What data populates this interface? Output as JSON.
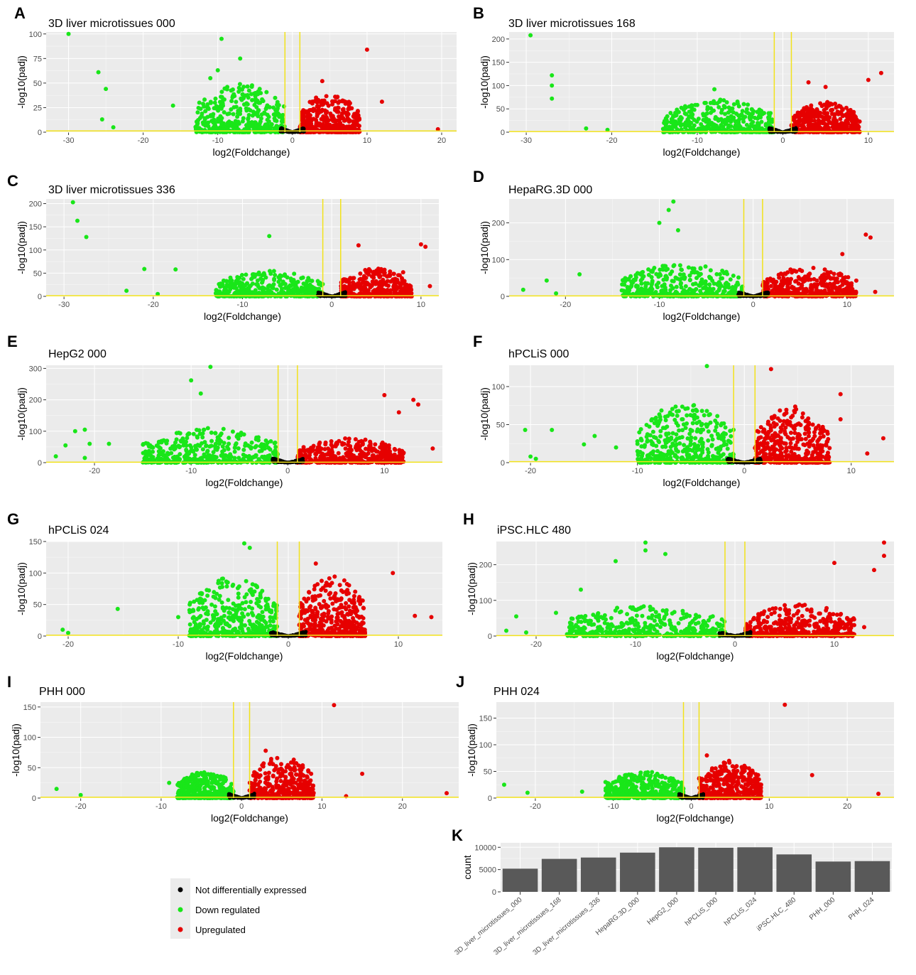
{
  "colors": {
    "panel_bg": "#ebebeb",
    "grid": "#ffffff",
    "threshold_line": "#f2e21a",
    "not_de": "#000000",
    "down": "#19e619",
    "up": "#e60000",
    "bar": "#595959"
  },
  "legend": {
    "items": [
      {
        "label": "Not differentially expressed",
        "color": "#000000"
      },
      {
        "label": "Down regulated",
        "color": "#19e619"
      },
      {
        "label": "Upregulated",
        "color": "#e60000"
      }
    ]
  },
  "chart_data": [
    {
      "panel": "A",
      "type": "scatter",
      "title": "3D liver microtissues 000",
      "xlabel": "log2(Foldchange)",
      "ylabel": "-log10(padj)",
      "xlim": [
        -33,
        22
      ],
      "ylim": [
        0,
        102
      ],
      "xticks": [
        -30,
        -20,
        -10,
        0,
        10,
        20
      ],
      "yticks": [
        0,
        25,
        50,
        75,
        100
      ],
      "threshold_x": [
        -1,
        1
      ],
      "threshold_y": 1.3,
      "down_cloud": {
        "x": [
          -13,
          -1
        ],
        "ymax": 50
      },
      "up_cloud": {
        "x": [
          1,
          9
        ],
        "ymax": 40
      },
      "outliers": [
        [
          -30,
          100
        ],
        [
          -26,
          61
        ],
        [
          -25,
          44
        ],
        [
          -25.5,
          13
        ],
        [
          -24,
          5
        ],
        [
          -16,
          27
        ],
        [
          -9.5,
          95
        ],
        [
          -7,
          75
        ],
        [
          -11,
          55
        ],
        [
          -10,
          63
        ],
        [
          10,
          84
        ],
        [
          12,
          31
        ],
        [
          19.5,
          3
        ],
        [
          4,
          52
        ]
      ]
    },
    {
      "panel": "B",
      "type": "scatter",
      "title": "3D liver microtissues 168",
      "xlabel": "log2(Foldchange)",
      "ylabel": "-log10(padj)",
      "xlim": [
        -32,
        13
      ],
      "ylim": [
        0,
        215
      ],
      "xticks": [
        -30,
        -20,
        -10,
        0,
        10
      ],
      "yticks": [
        0,
        50,
        100,
        150,
        200
      ],
      "threshold_x": [
        -1,
        1
      ],
      "threshold_y": 1.3,
      "down_cloud": {
        "x": [
          -14,
          -1
        ],
        "ymax": 70
      },
      "up_cloud": {
        "x": [
          1,
          9
        ],
        "ymax": 65
      },
      "outliers": [
        [
          -29.5,
          208
        ],
        [
          -27,
          122
        ],
        [
          -27,
          100
        ],
        [
          -27,
          72
        ],
        [
          -23,
          8
        ],
        [
          -20.5,
          5
        ],
        [
          -8,
          92
        ],
        [
          11.5,
          127
        ],
        [
          10,
          112
        ],
        [
          3,
          107
        ],
        [
          5,
          97
        ]
      ]
    },
    {
      "panel": "C",
      "type": "scatter",
      "title": "3D liver microtissues 336",
      "xlabel": "log2(Foldchange)",
      "ylabel": "-log10(padj)",
      "xlim": [
        -32,
        12
      ],
      "ylim": [
        0,
        210
      ],
      "xticks": [
        -30,
        -20,
        -10,
        0,
        10
      ],
      "yticks": [
        0,
        50,
        100,
        150,
        200
      ],
      "threshold_x": [
        -1,
        1
      ],
      "threshold_y": 1.3,
      "down_cloud": {
        "x": [
          -13,
          -1
        ],
        "ymax": 55
      },
      "up_cloud": {
        "x": [
          1,
          9
        ],
        "ymax": 60
      },
      "outliers": [
        [
          -29,
          203
        ],
        [
          -28.5,
          163
        ],
        [
          -27.5,
          128
        ],
        [
          -23,
          12
        ],
        [
          -21,
          59
        ],
        [
          -19.5,
          5
        ],
        [
          -17.5,
          58
        ],
        [
          -7,
          130
        ],
        [
          10,
          112
        ],
        [
          10.5,
          107
        ],
        [
          11,
          22
        ],
        [
          3,
          110
        ],
        [
          8,
          52
        ]
      ]
    },
    {
      "panel": "D",
      "type": "scatter",
      "title": "HepaRG.3D 000",
      "xlabel": "log2(Foldchange)",
      "ylabel": "-log10(padj)",
      "xlim": [
        -26,
        15
      ],
      "ylim": [
        0,
        265
      ],
      "xticks": [
        -20,
        -10,
        0,
        10
      ],
      "yticks": [
        0,
        100,
        200
      ],
      "threshold_x": [
        -1,
        1
      ],
      "threshold_y": 1.3,
      "down_cloud": {
        "x": [
          -14,
          -1
        ],
        "ymax": 90
      },
      "up_cloud": {
        "x": [
          1,
          11
        ],
        "ymax": 80
      },
      "outliers": [
        [
          -24.5,
          18
        ],
        [
          -22,
          43
        ],
        [
          -21,
          8
        ],
        [
          -18.5,
          60
        ],
        [
          -8.5,
          258
        ],
        [
          -9,
          235
        ],
        [
          -10,
          200
        ],
        [
          -8,
          180
        ],
        [
          12,
          168
        ],
        [
          12.5,
          160
        ],
        [
          9.5,
          115
        ],
        [
          13,
          12
        ]
      ]
    },
    {
      "panel": "E",
      "type": "scatter",
      "title": "HepG2 000",
      "xlabel": "log2(Foldchange)",
      "ylabel": "-log10(padj)",
      "xlim": [
        -25,
        16
      ],
      "ylim": [
        0,
        310
      ],
      "xticks": [
        -20,
        -10,
        0,
        10
      ],
      "yticks": [
        0,
        100,
        200,
        300
      ],
      "threshold_x": [
        -1,
        1
      ],
      "threshold_y": 1.3,
      "down_cloud": {
        "x": [
          -15,
          -1
        ],
        "ymax": 110
      },
      "up_cloud": {
        "x": [
          1,
          12
        ],
        "ymax": 80
      },
      "outliers": [
        [
          -24,
          20
        ],
        [
          -23,
          55
        ],
        [
          -22,
          100
        ],
        [
          -21,
          105
        ],
        [
          -20.5,
          60
        ],
        [
          -21,
          15
        ],
        [
          -18.5,
          60
        ],
        [
          -8,
          305
        ],
        [
          -10,
          262
        ],
        [
          -9,
          220
        ],
        [
          10,
          215
        ],
        [
          13,
          200
        ],
        [
          13.5,
          185
        ],
        [
          15,
          45
        ],
        [
          11.5,
          160
        ]
      ]
    },
    {
      "panel": "F",
      "type": "scatter",
      "title": "hPCLiS 000",
      "xlabel": "log2(Foldchange)",
      "ylabel": "-log10(padj)",
      "xlim": [
        -22,
        14
      ],
      "ylim": [
        0,
        128
      ],
      "xticks": [
        -20,
        -10,
        0,
        10
      ],
      "yticks": [
        0,
        50,
        100
      ],
      "threshold_x": [
        -1,
        1
      ],
      "threshold_y": 1.3,
      "down_cloud": {
        "x": [
          -10,
          -1
        ],
        "ymax": 80
      },
      "up_cloud": {
        "x": [
          1,
          8
        ],
        "ymax": 75
      },
      "outliers": [
        [
          -20.5,
          43
        ],
        [
          -20,
          8
        ],
        [
          -19.5,
          5
        ],
        [
          -18,
          43
        ],
        [
          -15,
          24
        ],
        [
          -14,
          35
        ],
        [
          -12,
          20
        ],
        [
          -10,
          28
        ],
        [
          -3.5,
          127
        ],
        [
          2.5,
          123
        ],
        [
          9,
          90
        ],
        [
          9,
          57
        ],
        [
          11.5,
          12
        ],
        [
          13,
          32
        ]
      ]
    },
    {
      "panel": "G",
      "type": "scatter",
      "title": "hPCLiS 024",
      "xlabel": "log2(Foldchange)",
      "ylabel": "-log10(padj)",
      "xlim": [
        -22,
        14
      ],
      "ylim": [
        0,
        150
      ],
      "xticks": [
        -20,
        -10,
        0,
        10
      ],
      "yticks": [
        0,
        50,
        100,
        150
      ],
      "threshold_x": [
        -1,
        1
      ],
      "threshold_y": 1.3,
      "down_cloud": {
        "x": [
          -9,
          -1
        ],
        "ymax": 95
      },
      "up_cloud": {
        "x": [
          1,
          7
        ],
        "ymax": 95
      },
      "outliers": [
        [
          -20.5,
          10
        ],
        [
          -20,
          5
        ],
        [
          -15.5,
          43
        ],
        [
          -10,
          30
        ],
        [
          -6,
          78
        ],
        [
          -4,
          147
        ],
        [
          -3.5,
          140
        ],
        [
          9.5,
          100
        ],
        [
          11.5,
          32
        ],
        [
          13,
          30
        ],
        [
          2.5,
          115
        ]
      ]
    },
    {
      "panel": "H",
      "type": "scatter",
      "title": "iPSC.HLC 480",
      "xlabel": "log2(Foldchange)",
      "ylabel": "-log10(padj)",
      "xlim": [
        -24,
        16
      ],
      "ylim": [
        0,
        265
      ],
      "xticks": [
        -20,
        -10,
        0,
        10
      ],
      "yticks": [
        0,
        100,
        200
      ],
      "threshold_x": [
        -1,
        1
      ],
      "threshold_y": 1.3,
      "down_cloud": {
        "x": [
          -17,
          -1
        ],
        "ymax": 85
      },
      "up_cloud": {
        "x": [
          1,
          12
        ],
        "ymax": 90
      },
      "outliers": [
        [
          -23,
          15
        ],
        [
          -22,
          55
        ],
        [
          -21,
          10
        ],
        [
          -18,
          65
        ],
        [
          -15.5,
          130
        ],
        [
          -9,
          262
        ],
        [
          -9,
          240
        ],
        [
          -7,
          230
        ],
        [
          -12,
          210
        ],
        [
          15,
          262
        ],
        [
          15,
          225
        ],
        [
          14,
          185
        ],
        [
          10,
          205
        ],
        [
          13,
          25
        ]
      ]
    },
    {
      "panel": "I",
      "type": "scatter",
      "title": "PHH 000",
      "xlabel": "log2(Foldchange)",
      "ylabel": "-log10(padj)",
      "xlim": [
        -25,
        27
      ],
      "ylim": [
        0,
        158
      ],
      "xticks": [
        -20,
        -10,
        0,
        10,
        20
      ],
      "yticks": [
        0,
        50,
        100,
        150
      ],
      "threshold_x": [
        -1,
        1
      ],
      "threshold_y": 1.3,
      "down_cloud": {
        "x": [
          -8,
          -1
        ],
        "ymax": 45
      },
      "up_cloud": {
        "x": [
          1,
          9
        ],
        "ymax": 70
      },
      "outliers": [
        [
          -23,
          15
        ],
        [
          -20,
          5
        ],
        [
          -9,
          25
        ],
        [
          11.5,
          153
        ],
        [
          15,
          40
        ],
        [
          25.5,
          8
        ],
        [
          13,
          3
        ],
        [
          3,
          78
        ]
      ]
    },
    {
      "panel": "J",
      "type": "scatter",
      "title": "PHH 024",
      "xlabel": "log2(Foldchange)",
      "ylabel": "-log10(padj)",
      "xlim": [
        -25,
        26
      ],
      "ylim": [
        0,
        180
      ],
      "xticks": [
        -20,
        -10,
        0,
        10,
        20
      ],
      "yticks": [
        0,
        50,
        100,
        150
      ],
      "threshold_x": [
        -1,
        1
      ],
      "threshold_y": 1.3,
      "down_cloud": {
        "x": [
          -11,
          -1
        ],
        "ymax": 50
      },
      "up_cloud": {
        "x": [
          1,
          9
        ],
        "ymax": 70
      },
      "outliers": [
        [
          -24,
          25
        ],
        [
          -21,
          10
        ],
        [
          -14,
          12
        ],
        [
          -11,
          30
        ],
        [
          12,
          175
        ],
        [
          15.5,
          43
        ],
        [
          24,
          8
        ],
        [
          2,
          80
        ]
      ]
    },
    {
      "panel": "K",
      "type": "bar",
      "title": "",
      "xlabel": "",
      "ylabel": "count",
      "ylim": [
        0,
        11000
      ],
      "yticks": [
        0,
        5000,
        10000
      ],
      "categories": [
        "3D_liver_microtissues_000",
        "3D_liver_microtissues_168",
        "3D_liver_microtissues_336",
        "HepaRG.3D_000",
        "HepG2_000",
        "hPCLiS_000",
        "hPCLiS_024",
        "iPSC.HLC_480",
        "PHH_000",
        "PHH_024"
      ],
      "values": [
        5200,
        7400,
        7700,
        8800,
        10000,
        9900,
        10000,
        8400,
        6800,
        6900
      ]
    }
  ]
}
